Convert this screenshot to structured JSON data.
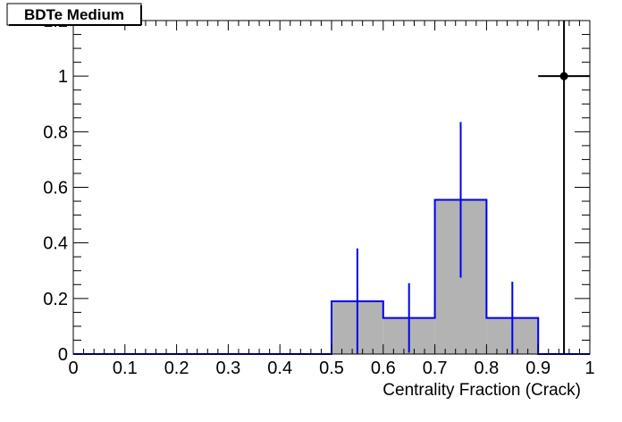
{
  "chart_data": {
    "type": "histogram",
    "title": "BDTe Medium",
    "xlabel": "Centrality Fraction (Crack)",
    "ylabel": "",
    "xlim": [
      0,
      1
    ],
    "ylim": [
      0,
      1.2
    ],
    "x_ticks": [
      "0",
      "0.1",
      "0.2",
      "0.3",
      "0.4",
      "0.5",
      "0.6",
      "0.7",
      "0.8",
      "0.9",
      "1"
    ],
    "y_ticks": [
      "0",
      "0.2",
      "0.4",
      "0.6",
      "0.8",
      "1",
      "1.2"
    ],
    "grid": false,
    "bin_edges": [
      0,
      0.1,
      0.2,
      0.3,
      0.4,
      0.5,
      0.6,
      0.7,
      0.8,
      0.9,
      1.0
    ],
    "series": [
      {
        "kind": "filled-histogram",
        "fill": "#b3b3b3",
        "line_color": "#0000ee",
        "values": [
          0,
          0,
          0,
          0,
          0,
          0.19,
          0.13,
          0.555,
          0.13,
          0
        ],
        "errors": [
          0,
          0,
          0,
          0,
          0,
          0.19,
          0.125,
          0.28,
          0.13,
          0
        ]
      },
      {
        "kind": "points",
        "color": "#000000",
        "points": [
          {
            "x": 0.95,
            "y": 1.0,
            "xerr": 0.05,
            "yerr": 1.0
          }
        ]
      }
    ]
  }
}
